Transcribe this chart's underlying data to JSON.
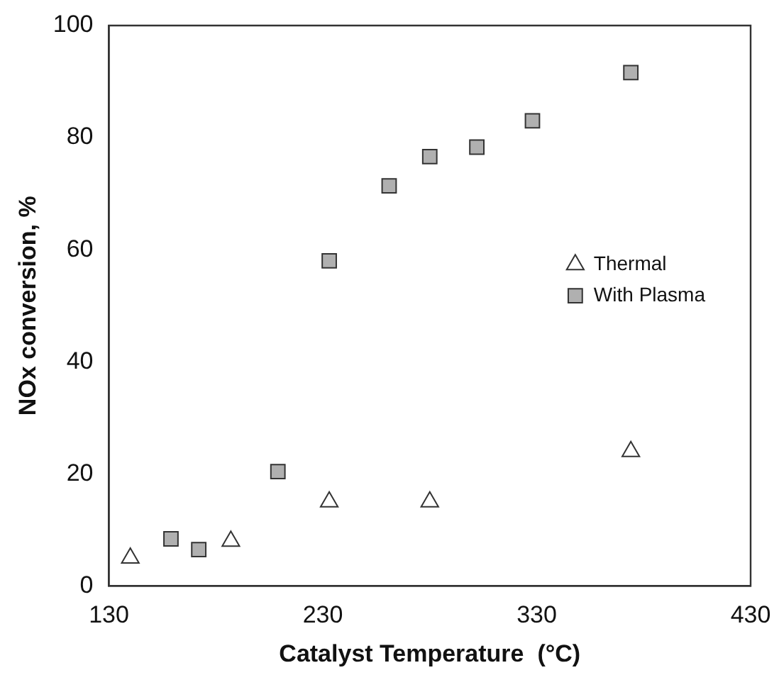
{
  "chart_data": {
    "type": "scatter",
    "xlabel": "Catalyst Temperature  (°C)",
    "ylabel": "NOx conversion, %",
    "xlim": [
      130,
      430
    ],
    "xticks": [
      130,
      230,
      330,
      430
    ],
    "ylim": [
      0,
      100
    ],
    "yticks": [
      0,
      20,
      40,
      60,
      80,
      100
    ],
    "grid": false,
    "legend": "right",
    "series": [
      {
        "name": "Thermal",
        "color": "#ffffff",
        "marker": "triangle",
        "x": [
          140,
          187,
          233,
          280,
          374
        ],
        "values": [
          5,
          8,
          15,
          15,
          24
        ]
      },
      {
        "name": "With Plasma",
        "color": "#b0b0b0",
        "marker": "square",
        "x": [
          159,
          172,
          209,
          233,
          261,
          280,
          302,
          328,
          374
        ],
        "values": [
          8.4,
          6.5,
          20.4,
          58,
          71.4,
          76.6,
          78.3,
          83,
          91.6
        ]
      }
    ]
  }
}
